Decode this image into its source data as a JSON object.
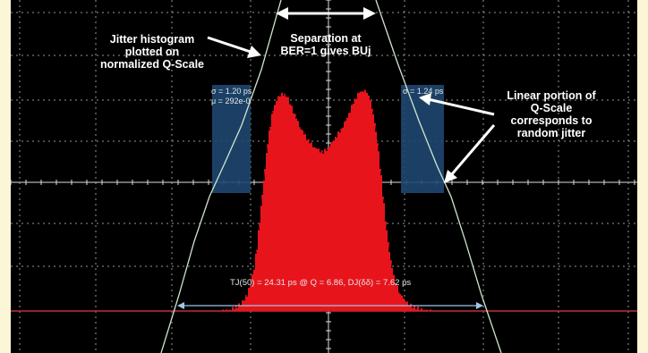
{
  "annotations": {
    "histogram_line1": "Jitter histogram",
    "histogram_line2": "plotted on",
    "histogram_line3": "normalized  Q-Scale",
    "separation_line1": "Separation at",
    "separation_line2": "BER=1 gives BUj",
    "linear_line1": "Linear portion of",
    "linear_line2": "Q-Scale",
    "linear_line3": "corresponds to",
    "linear_line4": "random jitter"
  },
  "readouts": {
    "left_sigma": "σ = 1.20 ps",
    "left_mu": "μ = 292e-0",
    "right_sigma": "σ = 1.24 ps",
    "measurement": "TJ(50) = 24.31 ps @ Q = 6.86,  DJ(δδ) = 7.62 ps"
  },
  "colors": {
    "background": "#fbf6d6",
    "screen": "#000000",
    "histogram": "#e8141c",
    "grid": "#c9c9c9",
    "q_scale_curve": "#cfe6cf",
    "fit_box": "#1f4770",
    "arrow": "#ffffff",
    "baseline": "#c0303a"
  }
}
